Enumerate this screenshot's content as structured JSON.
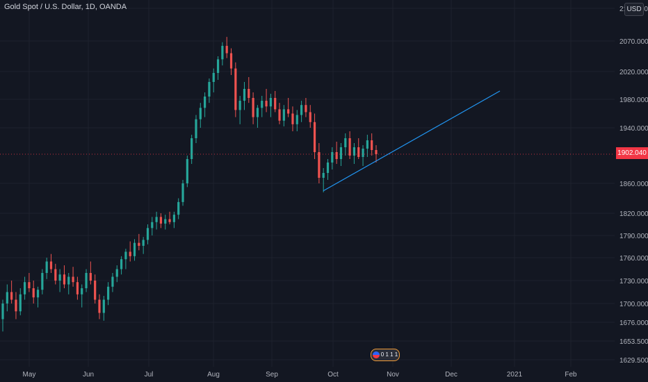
{
  "symbol_title": "Gold Spot / U.S. Dollar, 1D, OANDA",
  "currency": "USD",
  "last_price": "1902.040",
  "event_badge": "0 1 1 1 1",
  "colors": {
    "background": "#131722",
    "up": "#26a69a",
    "down": "#ef5350",
    "trendline": "#2196f3",
    "last_price": "#f23645"
  },
  "chart_data": {
    "type": "candlestick",
    "price_ticks": [
      "2110.000",
      "2070.000",
      "2020.000",
      "1980.000",
      "1940.000",
      "1860.000",
      "1820.000",
      "1790.000",
      "1760.000",
      "1730.000",
      "1700.000",
      "1676.000",
      "1653.500",
      "1629.500"
    ],
    "date_ticks": [
      "May",
      "Jun",
      "Jul",
      "Aug",
      "Sep",
      "Oct",
      "Nov",
      "Dec",
      "2021",
      "Feb"
    ],
    "grid": true,
    "candles": [
      [
        1680,
        1705,
        1665,
        1700
      ],
      [
        1700,
        1725,
        1690,
        1715
      ],
      [
        1715,
        1730,
        1700,
        1705
      ],
      [
        1705,
        1715,
        1680,
        1690
      ],
      [
        1690,
        1720,
        1685,
        1712
      ],
      [
        1712,
        1735,
        1705,
        1728
      ],
      [
        1728,
        1740,
        1715,
        1720
      ],
      [
        1720,
        1730,
        1700,
        1708
      ],
      [
        1708,
        1722,
        1695,
        1718
      ],
      [
        1718,
        1745,
        1712,
        1740
      ],
      [
        1740,
        1760,
        1732,
        1755
      ],
      [
        1755,
        1765,
        1740,
        1745
      ],
      [
        1745,
        1752,
        1725,
        1730
      ],
      [
        1730,
        1745,
        1715,
        1738
      ],
      [
        1738,
        1750,
        1720,
        1725
      ],
      [
        1725,
        1740,
        1712,
        1735
      ],
      [
        1735,
        1748,
        1722,
        1728
      ],
      [
        1728,
        1735,
        1705,
        1712
      ],
      [
        1712,
        1725,
        1695,
        1720
      ],
      [
        1720,
        1745,
        1715,
        1740
      ],
      [
        1740,
        1755,
        1725,
        1730
      ],
      [
        1730,
        1738,
        1700,
        1705
      ],
      [
        1705,
        1712,
        1680,
        1688
      ],
      [
        1688,
        1710,
        1678,
        1705
      ],
      [
        1705,
        1728,
        1698,
        1722
      ],
      [
        1722,
        1740,
        1715,
        1735
      ],
      [
        1735,
        1750,
        1728,
        1745
      ],
      [
        1745,
        1762,
        1738,
        1758
      ],
      [
        1758,
        1772,
        1745,
        1768
      ],
      [
        1768,
        1782,
        1755,
        1762
      ],
      [
        1762,
        1785,
        1756,
        1780
      ],
      [
        1780,
        1792,
        1770,
        1776
      ],
      [
        1776,
        1788,
        1765,
        1784
      ],
      [
        1784,
        1805,
        1778,
        1800
      ],
      [
        1800,
        1815,
        1790,
        1808
      ],
      [
        1808,
        1822,
        1798,
        1815
      ],
      [
        1815,
        1820,
        1800,
        1806
      ],
      [
        1806,
        1818,
        1798,
        1812
      ],
      [
        1812,
        1822,
        1805,
        1808
      ],
      [
        1808,
        1822,
        1800,
        1818
      ],
      [
        1818,
        1840,
        1812,
        1835
      ],
      [
        1835,
        1865,
        1830,
        1860
      ],
      [
        1860,
        1900,
        1855,
        1895
      ],
      [
        1895,
        1930,
        1888,
        1925
      ],
      [
        1925,
        1958,
        1918,
        1952
      ],
      [
        1952,
        1975,
        1940,
        1968
      ],
      [
        1968,
        1990,
        1955,
        1984
      ],
      [
        1984,
        2010,
        1975,
        2005
      ],
      [
        2005,
        2025,
        1990,
        2018
      ],
      [
        2018,
        2045,
        2008,
        2040
      ],
      [
        2040,
        2068,
        2030,
        2062
      ],
      [
        2062,
        2075,
        2042,
        2050
      ],
      [
        2050,
        2058,
        2015,
        2025
      ],
      [
        2025,
        2035,
        1955,
        1965
      ],
      [
        1965,
        1985,
        1945,
        1978
      ],
      [
        1978,
        2005,
        1965,
        1995
      ],
      [
        1995,
        2012,
        1975,
        1982
      ],
      [
        1982,
        1990,
        1945,
        1955
      ],
      [
        1955,
        1972,
        1940,
        1968
      ],
      [
        1968,
        1985,
        1955,
        1978
      ],
      [
        1978,
        1995,
        1962,
        1970
      ],
      [
        1970,
        1988,
        1955,
        1982
      ],
      [
        1982,
        1992,
        1962,
        1966
      ],
      [
        1966,
        1975,
        1945,
        1950
      ],
      [
        1950,
        1972,
        1942,
        1966
      ],
      [
        1966,
        1982,
        1955,
        1960
      ],
      [
        1960,
        1970,
        1935,
        1945
      ],
      [
        1945,
        1965,
        1935,
        1958
      ],
      [
        1958,
        1978,
        1948,
        1972
      ],
      [
        1972,
        1982,
        1955,
        1962
      ],
      [
        1962,
        1972,
        1940,
        1948
      ],
      [
        1948,
        1960,
        1895,
        1905
      ],
      [
        1905,
        1918,
        1860,
        1868
      ],
      [
        1868,
        1882,
        1848,
        1875
      ],
      [
        1875,
        1895,
        1865,
        1890
      ],
      [
        1890,
        1912,
        1880,
        1905
      ],
      [
        1905,
        1920,
        1888,
        1895
      ],
      [
        1895,
        1918,
        1885,
        1912
      ],
      [
        1912,
        1932,
        1900,
        1925
      ],
      [
        1925,
        1935,
        1895,
        1900
      ],
      [
        1900,
        1918,
        1888,
        1912
      ],
      [
        1912,
        1925,
        1895,
        1898
      ],
      [
        1898,
        1915,
        1885,
        1910
      ],
      [
        1910,
        1930,
        1898,
        1922
      ],
      [
        1922,
        1932,
        1900,
        1908
      ],
      [
        1908,
        1915,
        1890,
        1902
      ]
    ],
    "trendline": {
      "from": [
        "Sep 28",
        1850
      ],
      "to": [
        "Dec 28",
        1992
      ]
    }
  }
}
